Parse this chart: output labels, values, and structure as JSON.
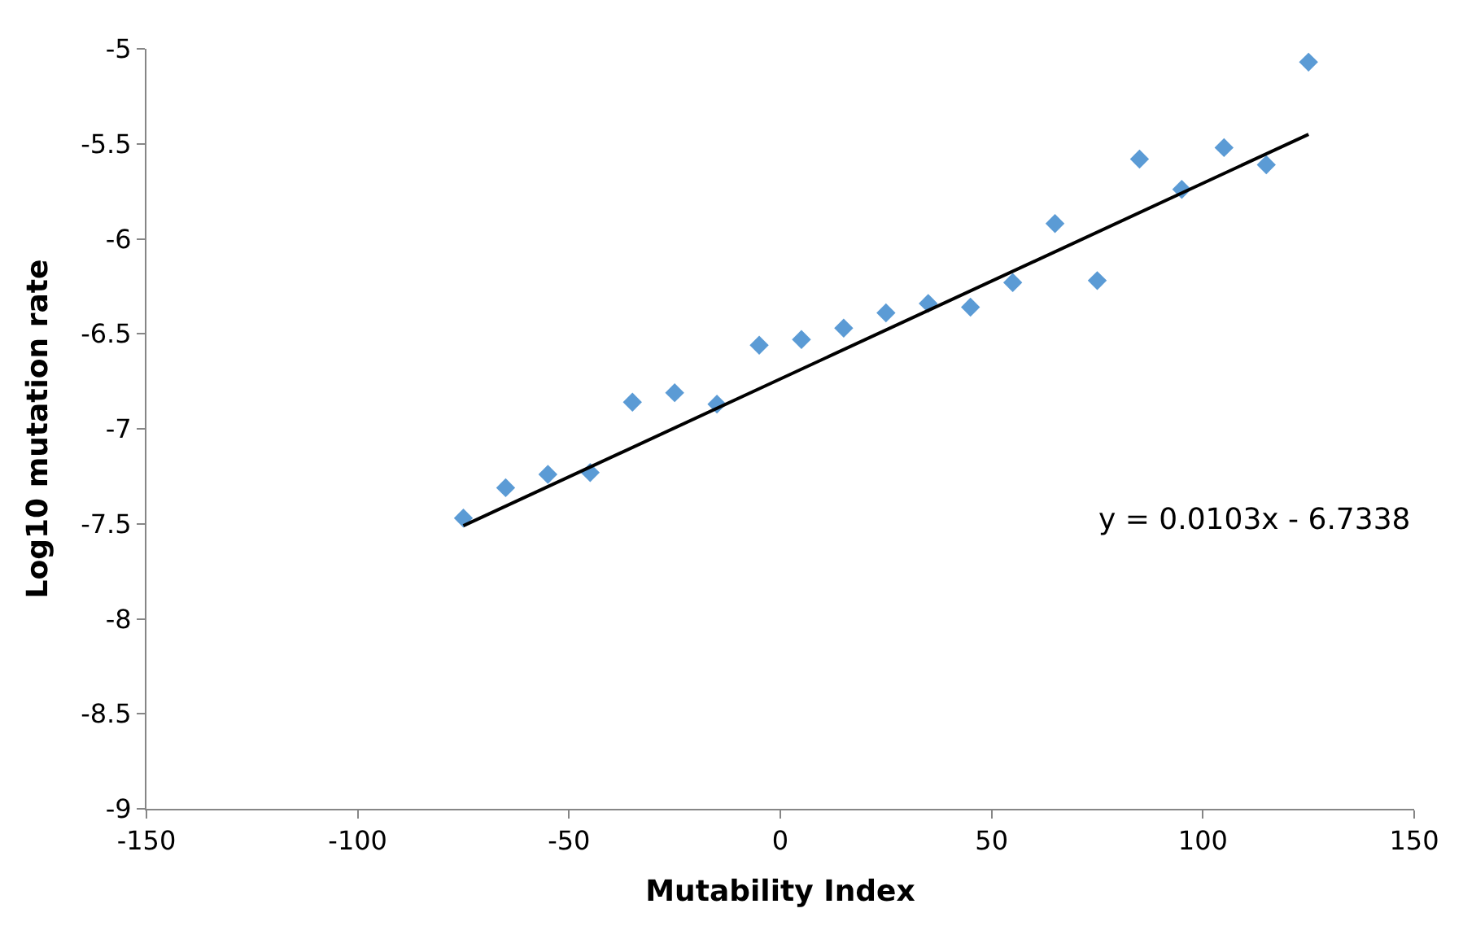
{
  "chart_data": {
    "type": "scatter",
    "xlabel": "Mutability Index",
    "ylabel": "Log10 mutation rate",
    "series": [
      {
        "color": "#5b9bd5",
        "marker": "diamond",
        "x": [
          -75,
          -65,
          -55,
          -45,
          -35,
          -25,
          -15,
          -5,
          5,
          15,
          25,
          35,
          45,
          55,
          65,
          75,
          85,
          95,
          105,
          115,
          125
        ],
        "values": [
          -7.47,
          -7.31,
          -7.24,
          -7.23,
          -6.86,
          -6.81,
          -6.87,
          -6.56,
          -6.53,
          -6.47,
          -6.39,
          -6.34,
          -6.36,
          -6.23,
          -5.92,
          -6.22,
          -5.58,
          -5.74,
          -5.52,
          -5.61,
          -5.07
        ]
      },
      {
        "type": "line",
        "color": "#000000",
        "line_style": "solid",
        "x": [
          -75,
          125
        ],
        "values": [
          -7.51,
          -5.45
        ]
      }
    ],
    "annotations": [
      "y = 0.0103x - 6.7338"
    ],
    "xlim": [
      -150,
      150
    ],
    "xticks": [
      -150,
      -100,
      -50,
      0,
      50,
      100,
      150
    ],
    "ylim": [
      -9,
      -5
    ],
    "yticks": [
      -9,
      -8.5,
      -8,
      -7.5,
      -7,
      -6.5,
      -6,
      -5.5,
      -5
    ]
  }
}
